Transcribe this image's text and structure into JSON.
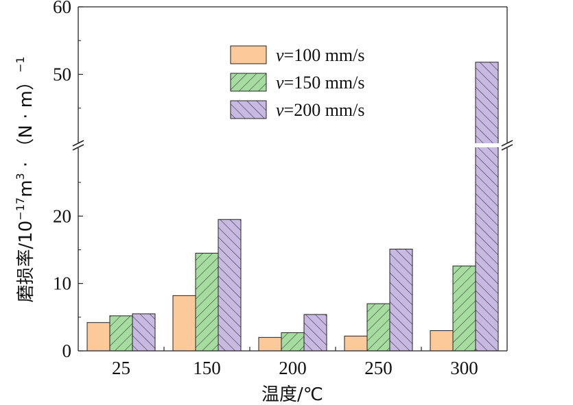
{
  "chart_data": {
    "type": "bar",
    "categories": [
      "25",
      "150",
      "200",
      "250",
      "300"
    ],
    "series": [
      {
        "name": "v=100 mm/s",
        "italic_prefix": "v",
        "rest": "=100 mm/s",
        "fill": "#fcc99b",
        "pattern": "none",
        "values": [
          4.2,
          8.2,
          2.0,
          2.2,
          3.0
        ]
      },
      {
        "name": "v=150 mm/s",
        "italic_prefix": "v",
        "rest": "=150 mm/s",
        "fill": "#a6dca0",
        "pattern": "hatch",
        "values": [
          5.2,
          14.5,
          2.7,
          7.0,
          12.6
        ]
      },
      {
        "name": "v=200 mm/s",
        "italic_prefix": "v",
        "rest": "=200 mm/s",
        "fill": "#c7b9df",
        "pattern": "hatch",
        "values": [
          5.5,
          19.5,
          5.4,
          15.1,
          51.8
        ]
      }
    ],
    "xlabel": "温度/℃",
    "ylabel": "磨损率/10⁻¹⁷m³·（N·m）⁻¹",
    "ylabel_parts": {
      "main": "磨损率/10",
      "exp1": "−17",
      "mid": "m",
      "exp2": "3",
      "tail": " · （N · m）",
      "exp3": "−1"
    },
    "broken_axis": true,
    "lower_range": [
      0,
      30
    ],
    "upper_range": [
      40,
      60
    ],
    "lower_ticks": [
      0,
      10,
      20
    ],
    "upper_ticks": [
      50,
      60
    ],
    "legend_position": "top-center"
  }
}
